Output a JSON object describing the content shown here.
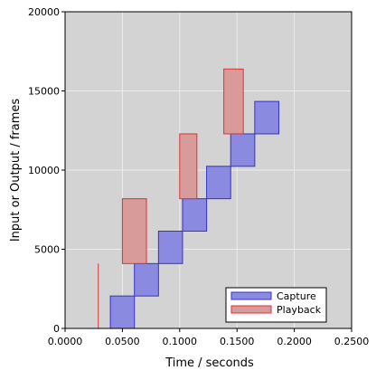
{
  "chart_data": {
    "type": "bar",
    "title": "",
    "xlabel": "Time / seconds",
    "ylabel": "Input or Output / frames",
    "xlim": [
      0.0,
      0.25
    ],
    "ylim": [
      0,
      20000
    ],
    "x_ticks": [
      0.0,
      0.05,
      0.1,
      0.15,
      0.2,
      0.25
    ],
    "x_tick_labels": [
      "0.0000",
      "0.0500",
      "0.1000",
      "0.1500",
      "0.2000",
      "0.2500"
    ],
    "y_ticks": [
      0,
      5000,
      10000,
      15000,
      20000
    ],
    "y_tick_labels": [
      "0",
      "5000",
      "10000",
      "15000",
      "20000"
    ],
    "grid": true,
    "legend_position": "bottom-right",
    "series": [
      {
        "name": "Capture",
        "color": "#3333cc",
        "fill": "#8a8ae0",
        "boxes": [
          {
            "x0": 0.0395,
            "x1": 0.0605,
            "y0": 0,
            "y1": 2048
          },
          {
            "x0": 0.0605,
            "x1": 0.0815,
            "y0": 2048,
            "y1": 4096
          },
          {
            "x0": 0.0815,
            "x1": 0.1025,
            "y0": 4096,
            "y1": 6144
          },
          {
            "x0": 0.1025,
            "x1": 0.1235,
            "y0": 6144,
            "y1": 8192
          },
          {
            "x0": 0.1235,
            "x1": 0.1445,
            "y0": 8192,
            "y1": 10240
          },
          {
            "x0": 0.1445,
            "x1": 0.1655,
            "y0": 10240,
            "y1": 12288
          },
          {
            "x0": 0.1655,
            "x1": 0.1865,
            "y0": 12288,
            "y1": 14336
          }
        ]
      },
      {
        "name": "Playback",
        "color": "#dd3333",
        "fill": "#d99a9a",
        "boxes": [
          {
            "x0": 0.029,
            "x1": 0.029,
            "y0": 0,
            "y1": 4096
          },
          {
            "x0": 0.05,
            "x1": 0.071,
            "y0": 4096,
            "y1": 8192
          },
          {
            "x0": 0.1,
            "x1": 0.115,
            "y0": 8192,
            "y1": 12288
          },
          {
            "x0": 0.1385,
            "x1": 0.1555,
            "y0": 12288,
            "y1": 16384
          }
        ]
      }
    ]
  }
}
